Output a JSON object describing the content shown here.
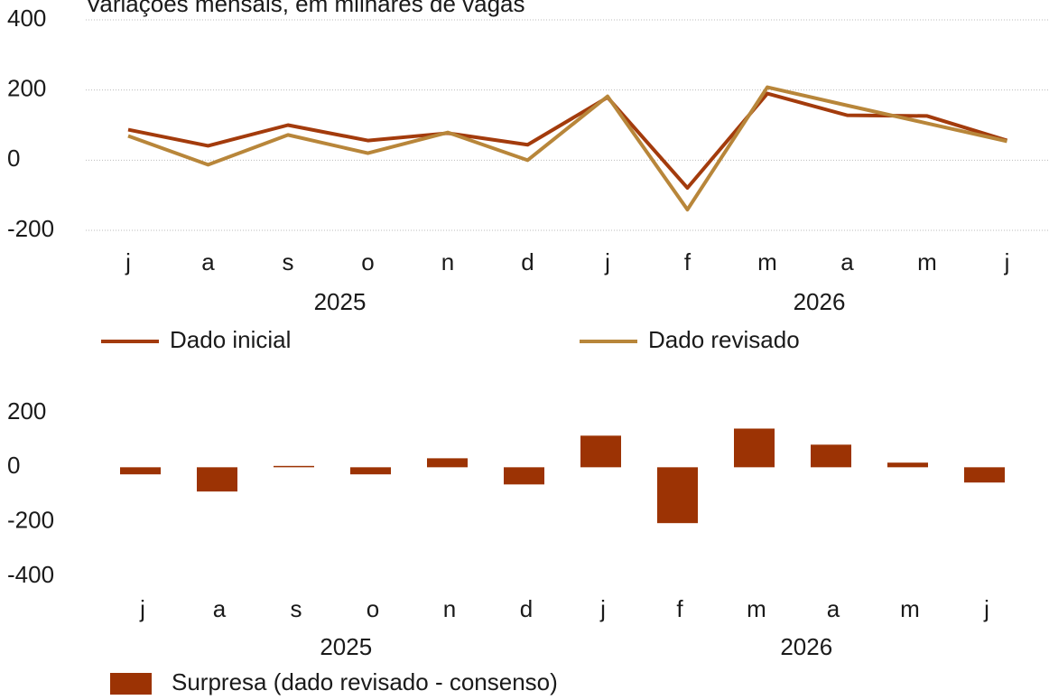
{
  "chart_data": [
    {
      "type": "line",
      "subtitle": "Variações mensais, em milhares de vagas",
      "categories": [
        "j",
        "a",
        "s",
        "o",
        "n",
        "d",
        "j",
        "f",
        "m",
        "a",
        "m",
        "j"
      ],
      "x_groups": [
        "2025",
        "2026"
      ],
      "series": [
        {
          "name": "Dado inicial",
          "color": "#a33b0c",
          "values": [
            87,
            41,
            100,
            56,
            77,
            44,
            179,
            -79,
            190,
            128,
            126,
            56
          ]
        },
        {
          "name": "Dado revisado",
          "color": "#b8863a",
          "values": [
            69,
            -13,
            72,
            20,
            79,
            0,
            182,
            -141,
            208,
            156,
            105,
            54
          ]
        }
      ],
      "ylim": [
        -200,
        400
      ],
      "yticks": [
        -200,
        0,
        200,
        400
      ],
      "grid": true
    },
    {
      "type": "bar",
      "categories": [
        "j",
        "a",
        "s",
        "o",
        "n",
        "d",
        "j",
        "f",
        "m",
        "a",
        "m",
        "j"
      ],
      "x_groups": [
        "2025",
        "2026"
      ],
      "series": [
        {
          "name": "Surpresa (dado revisado - consenso)",
          "color": "#9c3304",
          "values": [
            -26,
            -89,
            5,
            -26,
            33,
            -63,
            116,
            -205,
            142,
            83,
            17,
            -56
          ]
        }
      ],
      "ylim": [
        -400,
        200
      ],
      "yticks": [
        -400,
        -200,
        0,
        200
      ],
      "grid": false
    }
  ]
}
